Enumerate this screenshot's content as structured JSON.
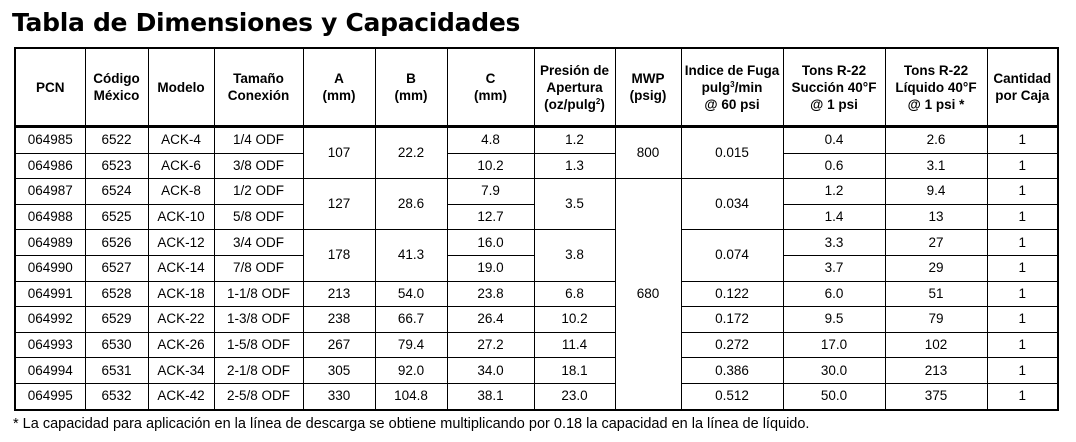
{
  "title": "Tabla de Dimensiones y Capacidades",
  "headers": {
    "pcn": [
      "PCN"
    ],
    "codigo": [
      "Código",
      "México"
    ],
    "modelo": [
      "Modelo"
    ],
    "tamano": [
      "Tamaño",
      "Conexión"
    ],
    "a": [
      "A",
      "(mm)"
    ],
    "b": [
      "B",
      "(mm)"
    ],
    "c": [
      "C",
      "(mm)"
    ],
    "presion": [
      "Presión de",
      "Apertura",
      "(oz/pulg",
      "2",
      ")"
    ],
    "mwp": [
      "MWP",
      "(psig)"
    ],
    "fuga": [
      "Indice de Fuga",
      "pulg",
      "3",
      "/min",
      "@ 60 psi"
    ],
    "succion": [
      "Tons R-22",
      "Succión 40°F",
      "@ 1 psi"
    ],
    "liquido": [
      "Tons R-22",
      "Líquido 40°F",
      "@ 1 psi *"
    ],
    "cantidad": [
      "Cantidad",
      "por Caja"
    ]
  },
  "rows": [
    {
      "pcn": "064985",
      "codigo": "6522",
      "modelo": "ACK-4",
      "tamano": "1/4 ODF",
      "a": "107",
      "b": "22.2",
      "c": "4.8",
      "presion": "1.2",
      "mwp": "800",
      "fuga": "0.015",
      "succion": "0.4",
      "liquido": "2.6",
      "cantidad": "1"
    },
    {
      "pcn": "064986",
      "codigo": "6523",
      "modelo": "ACK-6",
      "tamano": "3/8 ODF",
      "c": "10.2",
      "presion": "1.3",
      "succion": "0.6",
      "liquido": "3.1",
      "cantidad": "1"
    },
    {
      "pcn": "064987",
      "codigo": "6524",
      "modelo": "ACK-8",
      "tamano": "1/2 ODF",
      "a": "127",
      "b": "28.6",
      "c": "7.9",
      "presion": "3.5",
      "mwp": "680",
      "fuga": "0.034",
      "succion": "1.2",
      "liquido": "9.4",
      "cantidad": "1"
    },
    {
      "pcn": "064988",
      "codigo": "6525",
      "modelo": "ACK-10",
      "tamano": "5/8 ODF",
      "c": "12.7",
      "succion": "1.4",
      "liquido": "13",
      "cantidad": "1"
    },
    {
      "pcn": "064989",
      "codigo": "6526",
      "modelo": "ACK-12",
      "tamano": "3/4 ODF",
      "a": "178",
      "b": "41.3",
      "c": "16.0",
      "presion": "3.8",
      "fuga": "0.074",
      "succion": "3.3",
      "liquido": "27",
      "cantidad": "1"
    },
    {
      "pcn": "064990",
      "codigo": "6527",
      "modelo": "ACK-14",
      "tamano": "7/8 ODF",
      "c": "19.0",
      "succion": "3.7",
      "liquido": "29",
      "cantidad": "1"
    },
    {
      "pcn": "064991",
      "codigo": "6528",
      "modelo": "ACK-18",
      "tamano": "1-1/8 ODF",
      "a": "213",
      "b": "54.0",
      "c": "23.8",
      "presion": "6.8",
      "fuga": "0.122",
      "succion": "6.0",
      "liquido": "51",
      "cantidad": "1"
    },
    {
      "pcn": "064992",
      "codigo": "6529",
      "modelo": "ACK-22",
      "tamano": "1-3/8 ODF",
      "a": "238",
      "b": "66.7",
      "c": "26.4",
      "presion": "10.2",
      "fuga": "0.172",
      "succion": "9.5",
      "liquido": "79",
      "cantidad": "1"
    },
    {
      "pcn": "064993",
      "codigo": "6530",
      "modelo": "ACK-26",
      "tamano": "1-5/8 ODF",
      "a": "267",
      "b": "79.4",
      "c": "27.2",
      "presion": "11.4",
      "fuga": "0.272",
      "succion": "17.0",
      "liquido": "102",
      "cantidad": "1"
    },
    {
      "pcn": "064994",
      "codigo": "6531",
      "modelo": "ACK-34",
      "tamano": "2-1/8 ODF",
      "a": "305",
      "b": "92.0",
      "c": "34.0",
      "presion": "18.1",
      "fuga": "0.386",
      "succion": "30.0",
      "liquido": "213",
      "cantidad": "1"
    },
    {
      "pcn": "064995",
      "codigo": "6532",
      "modelo": "ACK-42",
      "tamano": "2-5/8 ODF",
      "a": "330",
      "b": "104.8",
      "c": "38.1",
      "presion": "23.0",
      "fuga": "0.512",
      "succion": "50.0",
      "liquido": "375",
      "cantidad": "1"
    }
  ],
  "footnote": "* La capacidad para aplicación en la línea de descarga se obtiene multiplicando por 0.18 la capacidad en la línea de líquido."
}
